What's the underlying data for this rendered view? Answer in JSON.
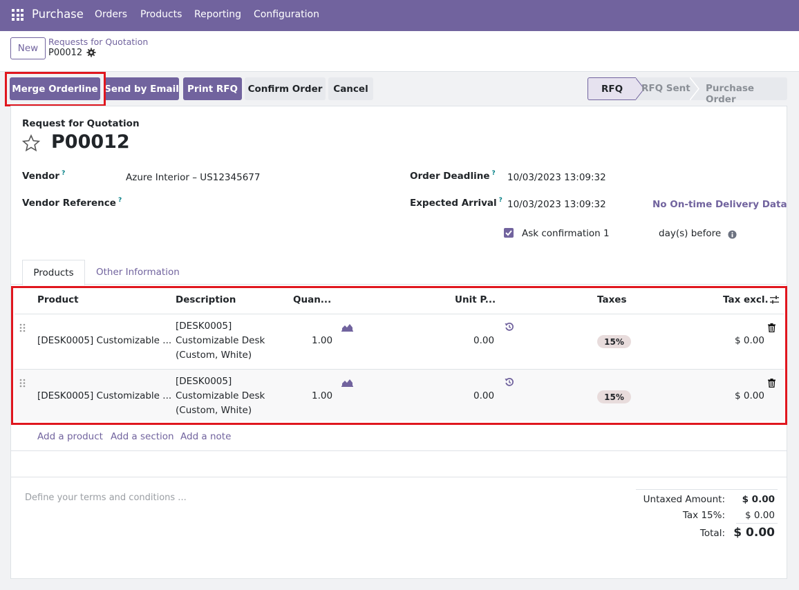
{
  "topbar": {
    "app_name": "Purchase",
    "menu": [
      "Orders",
      "Products",
      "Reporting",
      "Configuration"
    ]
  },
  "control": {
    "new_label": "New",
    "breadcrumb_parent": "Requests for Quotation",
    "breadcrumb_current": "P00012"
  },
  "actions": {
    "merge": "Merge Orderline",
    "send_email": "Send by Email",
    "print": "Print RFQ",
    "confirm": "Confirm Order",
    "cancel": "Cancel"
  },
  "stages": [
    "RFQ",
    "RFQ Sent",
    "Purchase Order"
  ],
  "form": {
    "subtitle": "Request for Quotation",
    "title": "P00012",
    "vendor_label": "Vendor",
    "vendor_value": "Azure Interior – US12345677",
    "vendor_ref_label": "Vendor Reference",
    "deadline_label": "Order Deadline",
    "deadline_value": "10/03/2023 13:09:32",
    "arrival_label": "Expected Arrival",
    "arrival_value": "10/03/2023 13:09:32",
    "ontime_link": "No On-time Delivery Data",
    "ask_label": "Ask confirmation",
    "ask_days": "1",
    "days_before": "day(s) before",
    "help_mark": "?"
  },
  "tabs": [
    "Products",
    "Other Information"
  ],
  "table": {
    "headers": {
      "product": "Product",
      "description": "Description",
      "quantity": "Quan...",
      "unit_price": "Unit P...",
      "taxes": "Taxes",
      "subtotal": "Tax excl."
    },
    "rows": [
      {
        "product": "[DESK0005] Customizable ...",
        "desc1": "[DESK0005]",
        "desc2": "Customizable Desk",
        "desc3": "(Custom, White)",
        "quantity": "1.00",
        "unit_price": "0.00",
        "tax": "15%",
        "subtotal": "$ 0.00"
      },
      {
        "product": "[DESK0005] Customizable ...",
        "desc1": "[DESK0005]",
        "desc2": "Customizable Desk",
        "desc3": "(Custom, White)",
        "quantity": "1.00",
        "unit_price": "0.00",
        "tax": "15%",
        "subtotal": "$ 0.00"
      }
    ],
    "add_product": "Add a product",
    "add_section": "Add a section",
    "add_note": "Add a note"
  },
  "terms_placeholder": "Define your terms and conditions ...",
  "totals": {
    "untaxed_label": "Untaxed Amount:",
    "untaxed_value": "$ 0.00",
    "tax_label": "Tax 15%:",
    "tax_value": "$ 0.00",
    "total_label": "Total:",
    "total_value": "$ 0.00"
  },
  "colors": {
    "brand": "#71639e",
    "highlight": "#e0161e",
    "link_teal": "#017e84"
  }
}
